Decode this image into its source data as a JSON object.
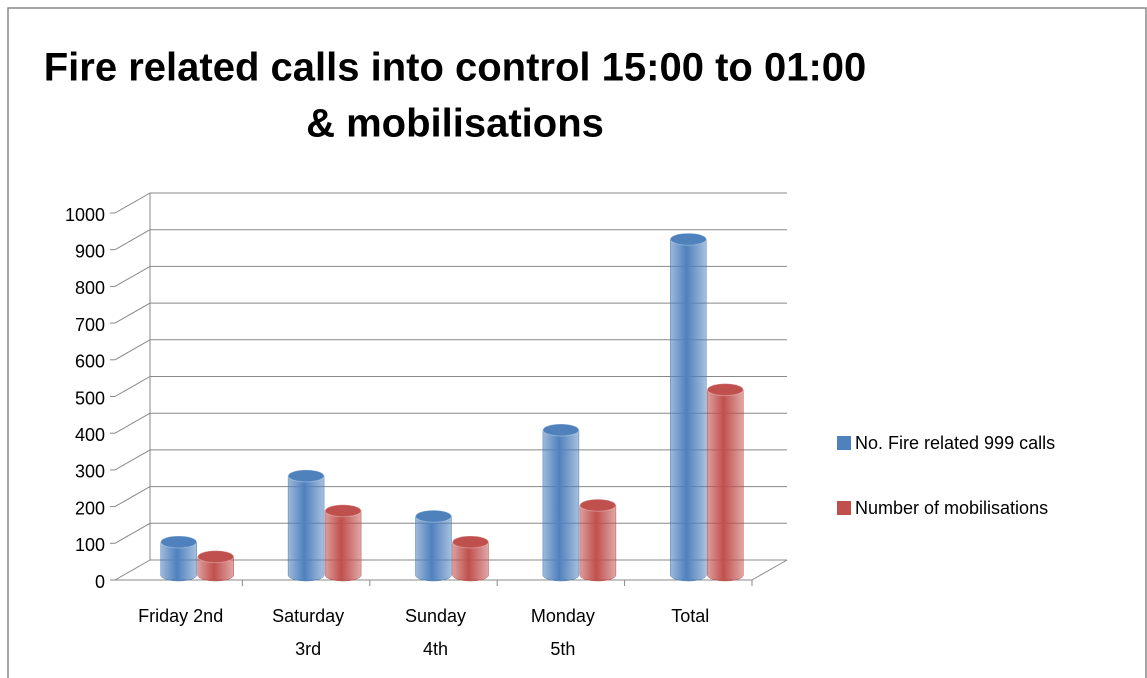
{
  "chart_data": {
    "type": "bar3d",
    "title": "Fire related calls into control 15:00 to 01:00",
    "subtitle": "& mobilisations",
    "categories": [
      "Friday 2nd",
      "Saturday 3rd",
      "Sunday 4th",
      "Monday 5th",
      "Total"
    ],
    "series": [
      {
        "name": "No. Fire related 999 calls",
        "color": "#4f81bd",
        "values": [
          90,
          270,
          160,
          395,
          915
        ]
      },
      {
        "name": "Number of mobilisations",
        "color": "#c0504d",
        "values": [
          50,
          175,
          90,
          190,
          505
        ]
      }
    ],
    "ylim": [
      0,
      1000
    ],
    "yticks": [
      0,
      100,
      200,
      300,
      400,
      500,
      600,
      700,
      800,
      900,
      1000
    ],
    "grid": true,
    "legend": "right"
  }
}
